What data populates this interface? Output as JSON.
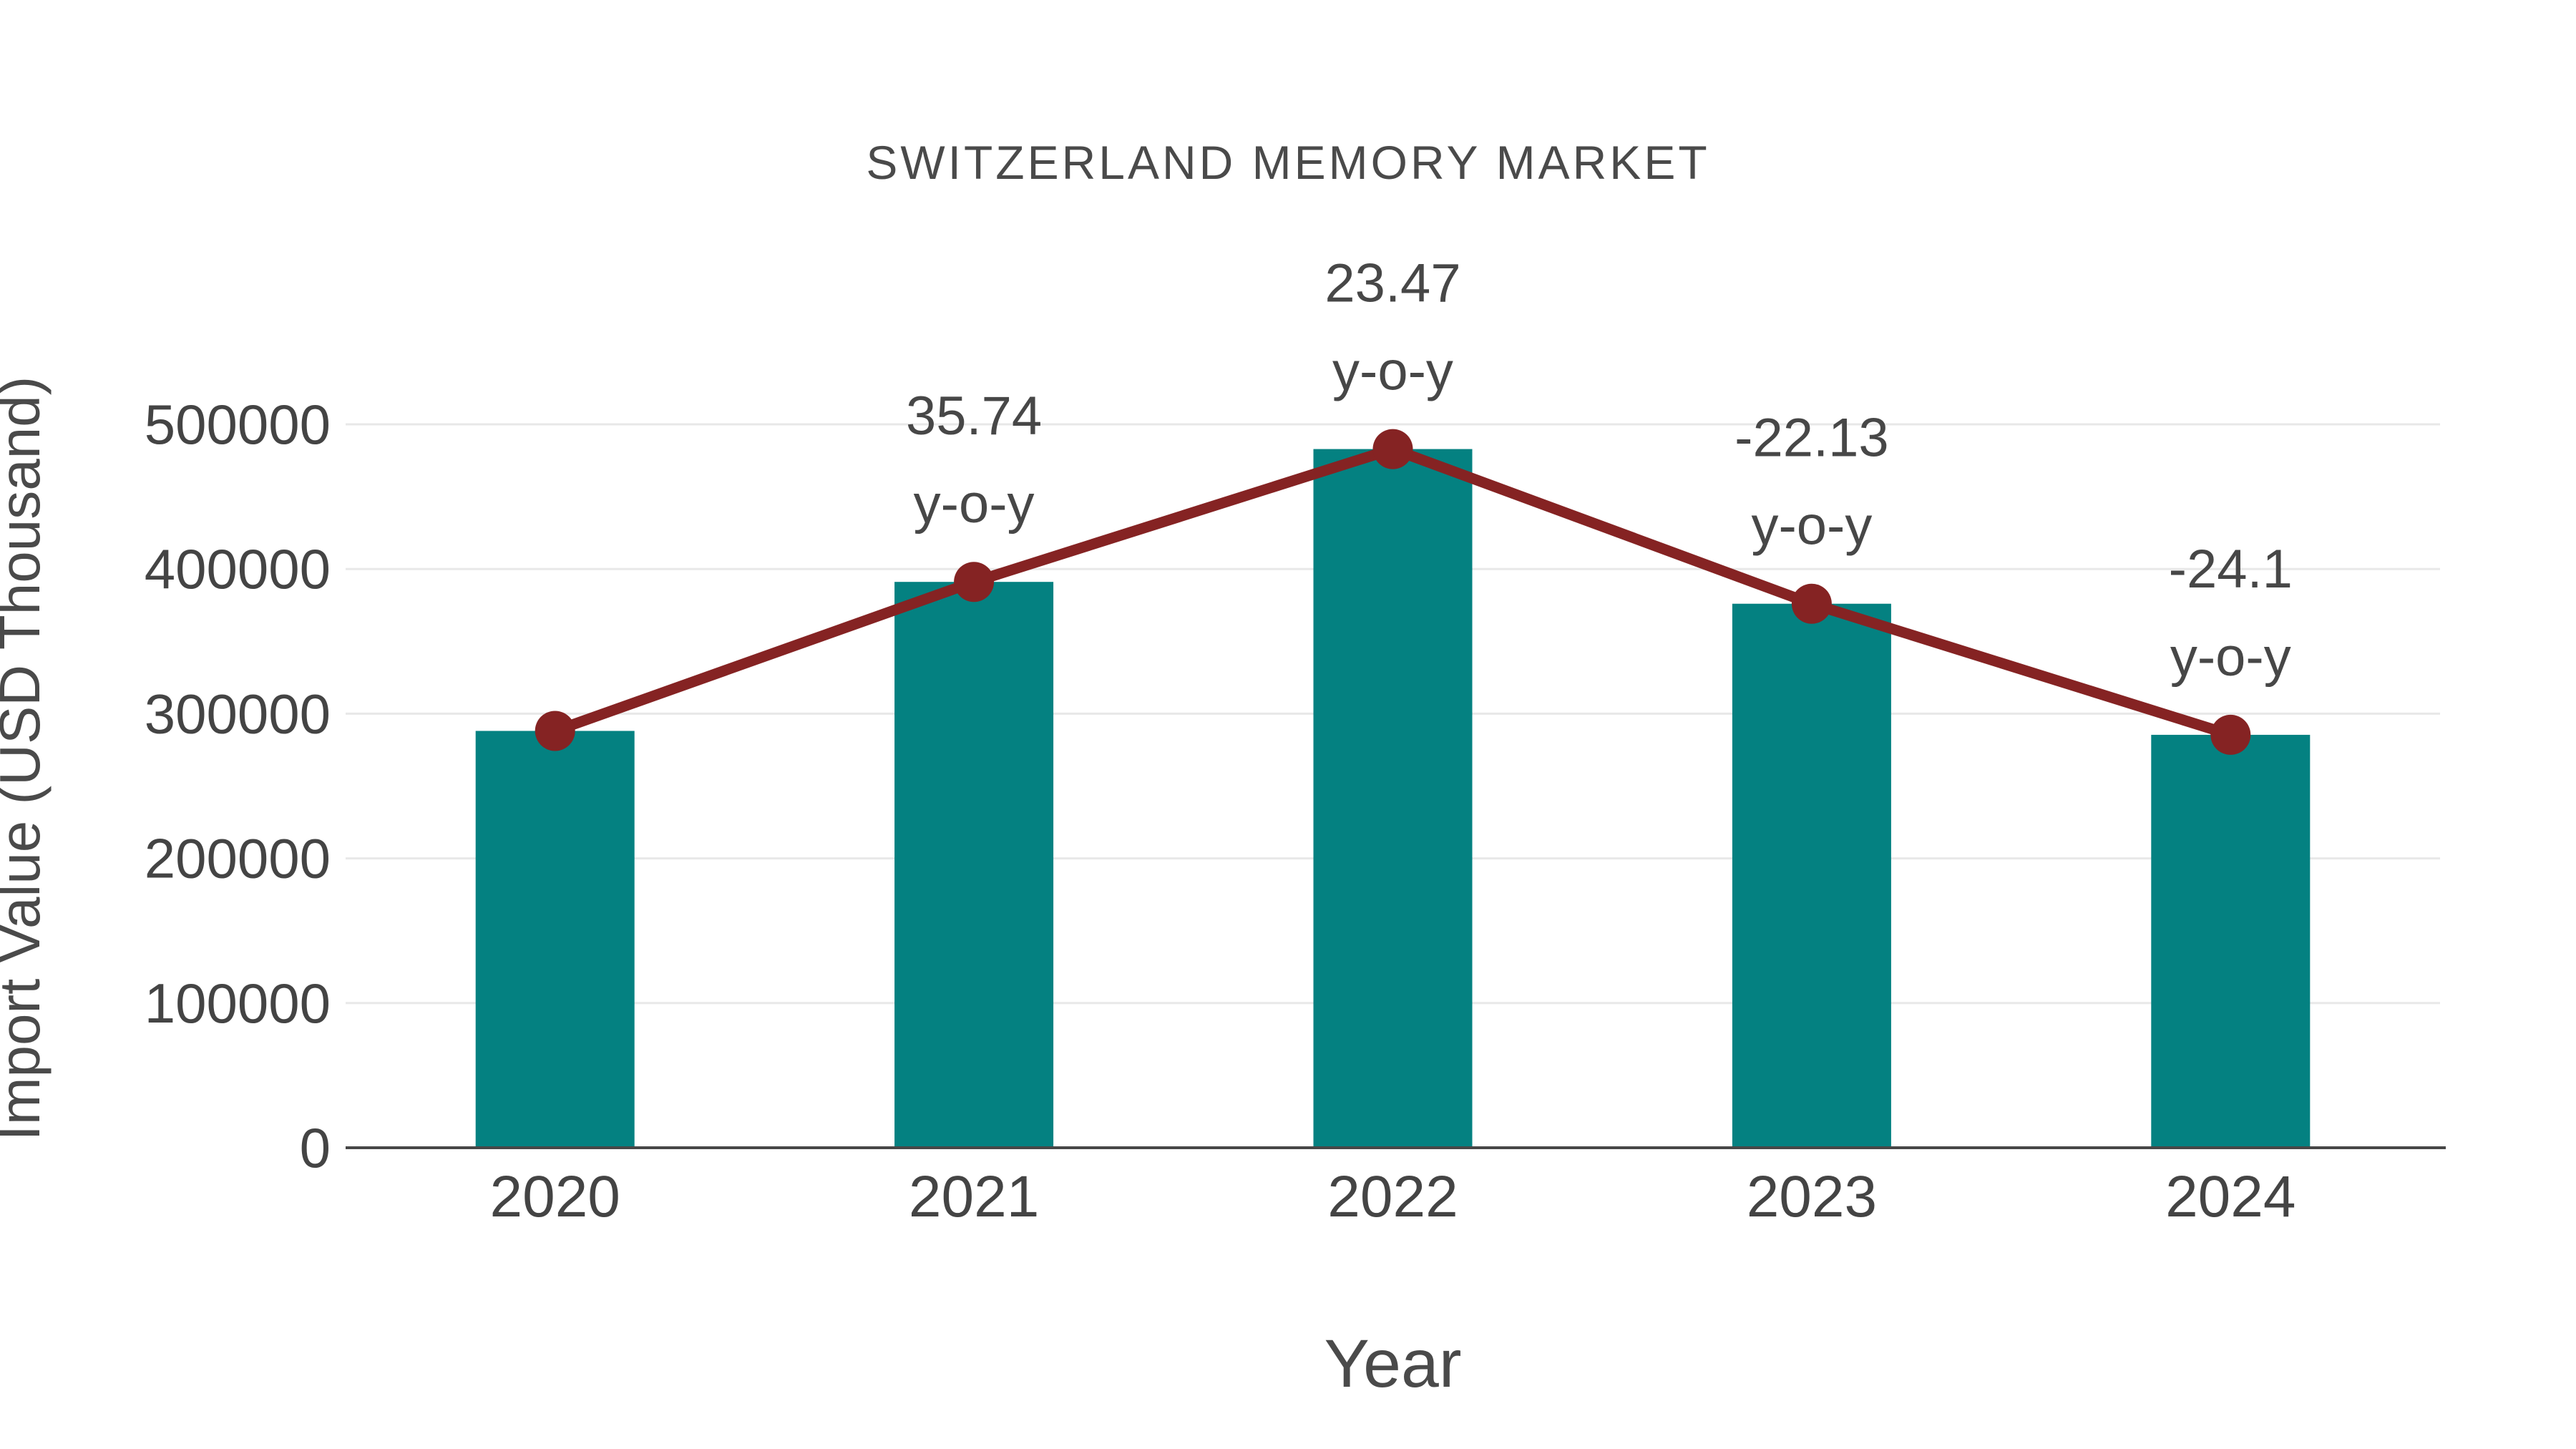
{
  "chart_data": {
    "type": "bar",
    "title": "SWITZERLAND MEMORY MARKET",
    "xlabel": "Year",
    "ylabel": "Import Value (USD Thousand)",
    "categories": [
      "2020",
      "2021",
      "2022",
      "2023",
      "2024"
    ],
    "series": [
      {
        "name": "Import Value bars",
        "type": "bar",
        "values": [
          288100,
          391100,
          482900,
          376000,
          285400
        ],
        "color": "#048181"
      },
      {
        "name": "Import Value trend line",
        "type": "line",
        "values": [
          288100,
          391100,
          482900,
          376000,
          285400
        ],
        "color": "#852323"
      }
    ],
    "point_labels": [
      null,
      "35.74",
      "23.47",
      "-22.13",
      "-24.1"
    ],
    "point_label_suffix": "y-o-y",
    "ylim": [
      0,
      500000
    ],
    "yticks": [
      0,
      100000,
      200000,
      300000,
      400000,
      500000
    ],
    "grid": true,
    "legend": false,
    "colors": {
      "bar": "#048181",
      "line": "#852323",
      "gridline": "#e8e8e8",
      "axis_line": "#474747",
      "text": "#444444"
    }
  }
}
